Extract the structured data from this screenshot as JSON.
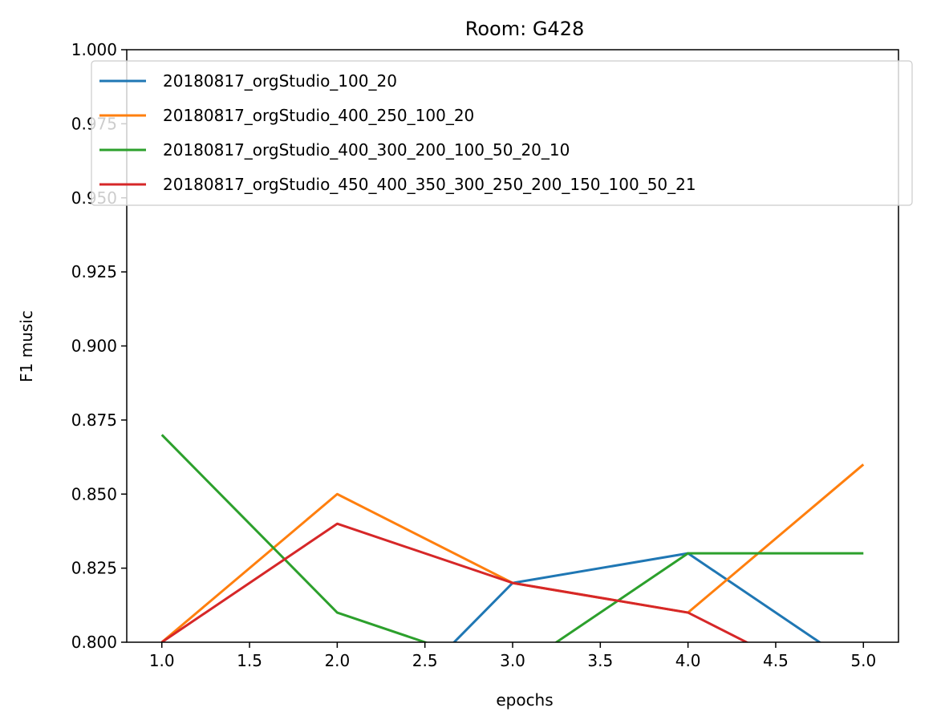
{
  "chart_data": {
    "type": "line",
    "title": "Room: G428",
    "xlabel": "epochs",
    "ylabel": "F1 music",
    "xlim": [
      0.8,
      5.2
    ],
    "ylim": [
      0.8,
      1.0
    ],
    "xticks": [
      "1.0",
      "1.5",
      "2.0",
      "2.5",
      "3.0",
      "3.5",
      "4.0",
      "4.5",
      "5.0"
    ],
    "yticks": [
      "0.800",
      "0.825",
      "0.850",
      "0.875",
      "0.900",
      "0.925",
      "0.950",
      "0.975",
      "1.000"
    ],
    "x": [
      1,
      2,
      3,
      4,
      5
    ],
    "legend_position": "upper-left",
    "grid": false,
    "series": [
      {
        "name": "20180817_orgStudio_100_20",
        "color": "#1f77b4",
        "values": [
          0.79,
          0.76,
          0.82,
          0.83,
          0.79
        ]
      },
      {
        "name": "20180817_orgStudio_400_250_100_20",
        "color": "#ff7f0e",
        "values": [
          0.8,
          0.85,
          0.82,
          0.81,
          0.86
        ]
      },
      {
        "name": "20180817_orgStudio_400_300_200_100_50_20_10",
        "color": "#2ca02c",
        "values": [
          0.87,
          0.81,
          0.79,
          0.83,
          0.83
        ]
      },
      {
        "name": "20180817_orgStudio_450_400_350_300_250_200_150_100_50_21",
        "color": "#d62728",
        "values": [
          0.8,
          0.84,
          0.82,
          0.81,
          0.78
        ]
      }
    ]
  }
}
